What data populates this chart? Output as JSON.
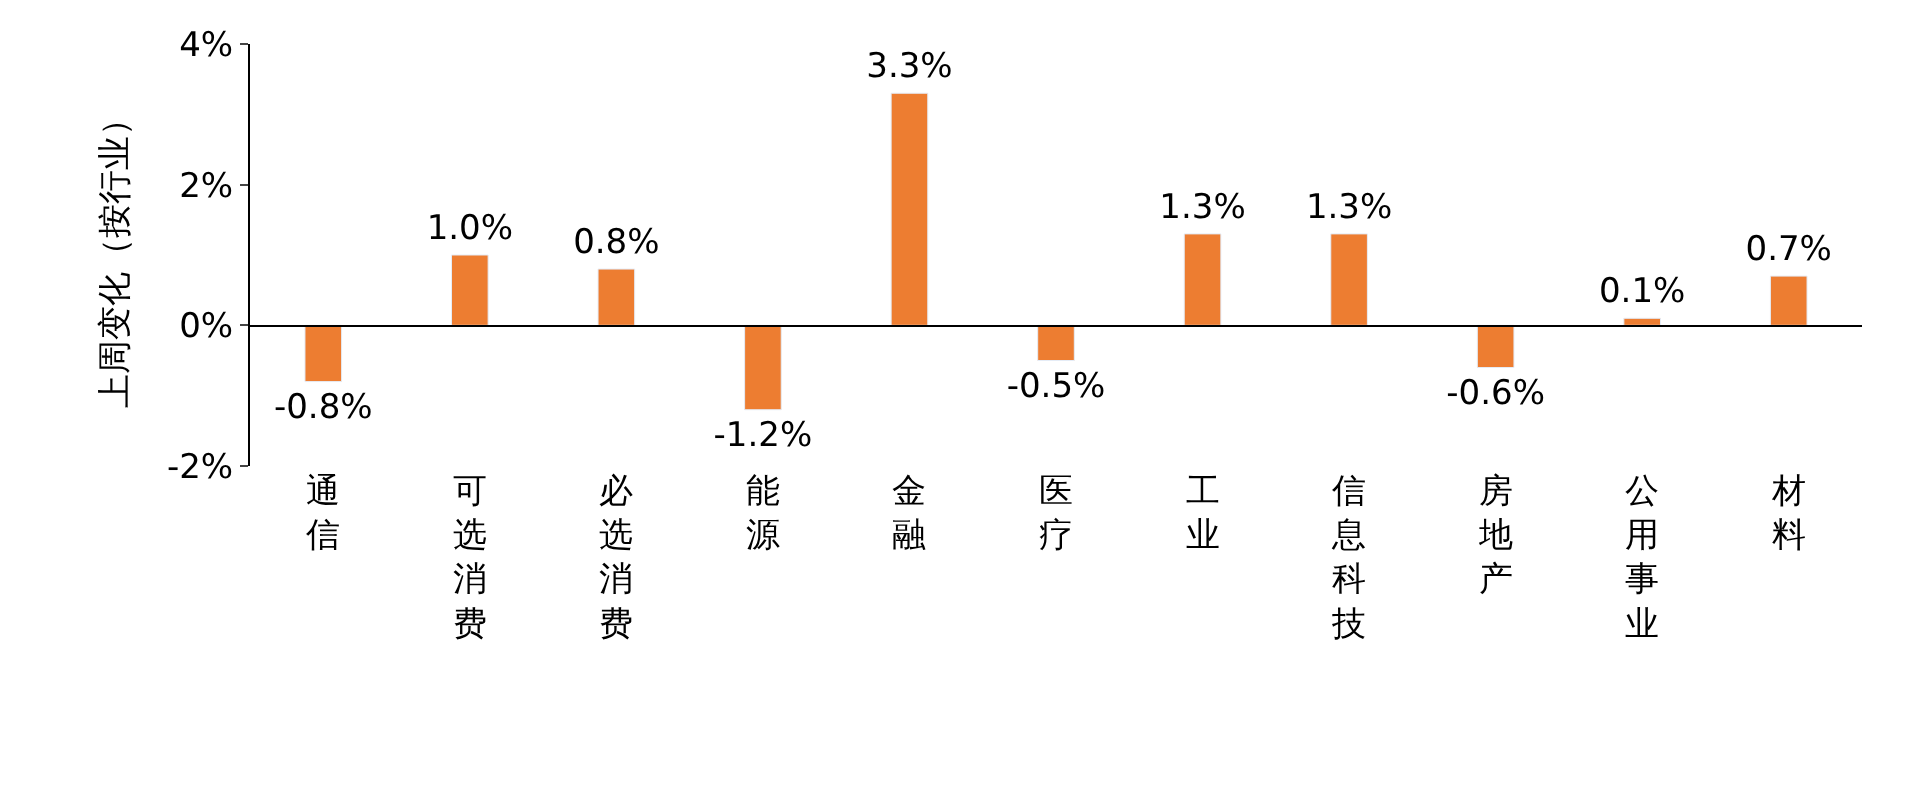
{
  "chart_data": {
    "type": "bar",
    "ylabel": "上周变化（按行业）",
    "categories": [
      "通信",
      "可选消费",
      "必选消费",
      "能源",
      "金融",
      "医疗",
      "工业",
      "信息科技",
      "房地产",
      "公用事业",
      "材料"
    ],
    "values": [
      -0.8,
      1.0,
      0.8,
      -1.2,
      3.3,
      -0.5,
      1.3,
      1.3,
      -0.6,
      0.1,
      0.7
    ],
    "value_labels": [
      "-0.8%",
      "1.0%",
      "0.8%",
      "-1.2%",
      "3.3%",
      "-0.5%",
      "1.3%",
      "1.3%",
      "-0.6%",
      "0.1%",
      "0.7%"
    ],
    "color": "#ed7d31",
    "ylim": [
      -2,
      4
    ],
    "yticks": [
      {
        "value": -2,
        "label": "-2%"
      },
      {
        "value": 0,
        "label": "0%"
      },
      {
        "value": 2,
        "label": "2%"
      },
      {
        "value": 4,
        "label": "4%"
      }
    ],
    "legend": false
  }
}
